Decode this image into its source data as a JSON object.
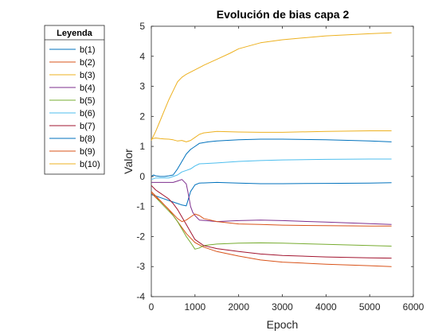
{
  "chart_data": {
    "type": "line",
    "title": "Evolución de bias capa 2",
    "xlabel": "Epoch",
    "ylabel": "Valor",
    "xlim": [
      0,
      6000
    ],
    "ylim": [
      -4,
      5
    ],
    "xticks": [
      0,
      1000,
      2000,
      3000,
      4000,
      5000,
      6000
    ],
    "yticks": [
      -4,
      -3,
      -2,
      -1,
      0,
      1,
      2,
      3,
      4,
      5
    ],
    "xtick_labels": [
      "0",
      "1000",
      "2000",
      "3000",
      "4000",
      "5000",
      "6000"
    ],
    "ytick_labels": [
      "-4",
      "-3",
      "-2",
      "-1",
      "0",
      "1",
      "2",
      "3",
      "4",
      "5"
    ],
    "grid": false,
    "legend": {
      "title": "Leyenda",
      "placement": "outside-left"
    },
    "series": [
      {
        "name": "b(1)",
        "color": "#0072BD",
        "points": [
          [
            0,
            -0.6
          ],
          [
            100,
            -0.65
          ],
          [
            200,
            -0.7
          ],
          [
            300,
            -0.75
          ],
          [
            400,
            -0.8
          ],
          [
            500,
            -0.85
          ],
          [
            600,
            -0.9
          ],
          [
            700,
            -0.95
          ],
          [
            800,
            -0.98
          ],
          [
            900,
            -0.5
          ],
          [
            1000,
            -0.28
          ],
          [
            1100,
            -0.22
          ],
          [
            1500,
            -0.2
          ],
          [
            2000,
            -0.22
          ],
          [
            2500,
            -0.24
          ],
          [
            3000,
            -0.24
          ],
          [
            4000,
            -0.23
          ],
          [
            5000,
            -0.22
          ],
          [
            5500,
            -0.21
          ]
        ]
      },
      {
        "name": "b(2)",
        "color": "#D95319",
        "points": [
          [
            0,
            -0.5
          ],
          [
            100,
            -0.65
          ],
          [
            200,
            -0.8
          ],
          [
            300,
            -0.95
          ],
          [
            400,
            -1.1
          ],
          [
            500,
            -1.3
          ],
          [
            600,
            -1.5
          ],
          [
            700,
            -1.7
          ],
          [
            800,
            -1.9
          ],
          [
            900,
            -2.05
          ],
          [
            1000,
            -2.2
          ],
          [
            1200,
            -2.35
          ],
          [
            1500,
            -2.5
          ],
          [
            2000,
            -2.65
          ],
          [
            2500,
            -2.78
          ],
          [
            3000,
            -2.85
          ],
          [
            4000,
            -2.92
          ],
          [
            5000,
            -2.97
          ],
          [
            5500,
            -3.0
          ]
        ]
      },
      {
        "name": "b(3)",
        "color": "#EDB120",
        "points": [
          [
            0,
            1.2
          ],
          [
            50,
            1.35
          ],
          [
            100,
            1.5
          ],
          [
            200,
            1.85
          ],
          [
            300,
            2.2
          ],
          [
            400,
            2.55
          ],
          [
            500,
            2.85
          ],
          [
            600,
            3.15
          ],
          [
            700,
            3.3
          ],
          [
            800,
            3.4
          ],
          [
            1000,
            3.55
          ],
          [
            1200,
            3.7
          ],
          [
            1500,
            3.9
          ],
          [
            1800,
            4.1
          ],
          [
            2000,
            4.25
          ],
          [
            2500,
            4.45
          ],
          [
            3000,
            4.55
          ],
          [
            4000,
            4.68
          ],
          [
            5000,
            4.75
          ],
          [
            5500,
            4.78
          ]
        ]
      },
      {
        "name": "b(4)",
        "color": "#7E2F8E",
        "points": [
          [
            0,
            -0.2
          ],
          [
            100,
            -0.2
          ],
          [
            200,
            -0.2
          ],
          [
            300,
            -0.2
          ],
          [
            400,
            -0.2
          ],
          [
            500,
            -0.2
          ],
          [
            600,
            -0.15
          ],
          [
            700,
            -0.1
          ],
          [
            800,
            -0.25
          ],
          [
            850,
            -0.6
          ],
          [
            900,
            -1.0
          ],
          [
            950,
            -1.2
          ],
          [
            1000,
            -1.3
          ],
          [
            1100,
            -1.45
          ],
          [
            1500,
            -1.5
          ],
          [
            2000,
            -1.47
          ],
          [
            2500,
            -1.45
          ],
          [
            3000,
            -1.47
          ],
          [
            4000,
            -1.52
          ],
          [
            5000,
            -1.57
          ],
          [
            5500,
            -1.6
          ]
        ]
      },
      {
        "name": "b(5)",
        "color": "#77AC30",
        "points": [
          [
            0,
            -0.55
          ],
          [
            100,
            -0.7
          ],
          [
            200,
            -0.85
          ],
          [
            300,
            -1.0
          ],
          [
            400,
            -1.15
          ],
          [
            500,
            -1.3
          ],
          [
            600,
            -1.5
          ],
          [
            700,
            -1.75
          ],
          [
            800,
            -2.0
          ],
          [
            900,
            -2.2
          ],
          [
            1000,
            -2.42
          ],
          [
            1100,
            -2.38
          ],
          [
            1200,
            -2.3
          ],
          [
            1500,
            -2.25
          ],
          [
            2000,
            -2.22
          ],
          [
            2500,
            -2.21
          ],
          [
            3000,
            -2.22
          ],
          [
            4000,
            -2.26
          ],
          [
            5000,
            -2.3
          ],
          [
            5500,
            -2.32
          ]
        ]
      },
      {
        "name": "b(6)",
        "color": "#4DBEEE",
        "points": [
          [
            0,
            -0.1
          ],
          [
            100,
            -0.05
          ],
          [
            200,
            -0.05
          ],
          [
            300,
            -0.05
          ],
          [
            400,
            -0.05
          ],
          [
            500,
            0.0
          ],
          [
            600,
            0.05
          ],
          [
            700,
            0.15
          ],
          [
            800,
            0.2
          ],
          [
            900,
            0.25
          ],
          [
            1000,
            0.35
          ],
          [
            1100,
            0.42
          ],
          [
            1500,
            0.45
          ],
          [
            2000,
            0.5
          ],
          [
            2500,
            0.53
          ],
          [
            3000,
            0.55
          ],
          [
            4000,
            0.57
          ],
          [
            5000,
            0.58
          ],
          [
            5500,
            0.58
          ]
        ]
      },
      {
        "name": "b(7)",
        "color": "#A2142F",
        "points": [
          [
            0,
            -0.3
          ],
          [
            100,
            -0.45
          ],
          [
            200,
            -0.55
          ],
          [
            300,
            -0.65
          ],
          [
            400,
            -0.75
          ],
          [
            500,
            -0.9
          ],
          [
            600,
            -1.1
          ],
          [
            700,
            -1.35
          ],
          [
            800,
            -1.6
          ],
          [
            900,
            -1.85
          ],
          [
            1000,
            -2.1
          ],
          [
            1200,
            -2.3
          ],
          [
            1500,
            -2.4
          ],
          [
            2000,
            -2.5
          ],
          [
            2500,
            -2.58
          ],
          [
            3000,
            -2.63
          ],
          [
            4000,
            -2.68
          ],
          [
            5000,
            -2.71
          ],
          [
            5500,
            -2.72
          ]
        ]
      },
      {
        "name": "b(8)",
        "color": "#0072BD",
        "points": [
          [
            0,
            0.0
          ],
          [
            50,
            0.05
          ],
          [
            100,
            0.02
          ],
          [
            200,
            0.0
          ],
          [
            300,
            0.0
          ],
          [
            400,
            0.02
          ],
          [
            500,
            0.05
          ],
          [
            600,
            0.25
          ],
          [
            700,
            0.5
          ],
          [
            800,
            0.75
          ],
          [
            900,
            0.9
          ],
          [
            1000,
            1.0
          ],
          [
            1100,
            1.1
          ],
          [
            1300,
            1.15
          ],
          [
            1500,
            1.18
          ],
          [
            2000,
            1.22
          ],
          [
            2500,
            1.24
          ],
          [
            3000,
            1.24
          ],
          [
            4000,
            1.22
          ],
          [
            5000,
            1.18
          ],
          [
            5500,
            1.15
          ]
        ]
      },
      {
        "name": "b(9)",
        "color": "#D95319",
        "points": [
          [
            0,
            -0.55
          ],
          [
            100,
            -0.7
          ],
          [
            200,
            -0.8
          ],
          [
            300,
            -0.95
          ],
          [
            400,
            -1.1
          ],
          [
            500,
            -1.25
          ],
          [
            600,
            -1.4
          ],
          [
            700,
            -1.5
          ],
          [
            800,
            -1.45
          ],
          [
            900,
            -1.35
          ],
          [
            1000,
            -1.25
          ],
          [
            1100,
            -1.3
          ],
          [
            1200,
            -1.4
          ],
          [
            1500,
            -1.5
          ],
          [
            2000,
            -1.58
          ],
          [
            2500,
            -1.6
          ],
          [
            3000,
            -1.62
          ],
          [
            4000,
            -1.64
          ],
          [
            5000,
            -1.65
          ],
          [
            5500,
            -1.65
          ]
        ]
      },
      {
        "name": "b(10)",
        "color": "#EDB120",
        "points": [
          [
            0,
            1.25
          ],
          [
            100,
            1.28
          ],
          [
            200,
            1.26
          ],
          [
            300,
            1.25
          ],
          [
            400,
            1.24
          ],
          [
            500,
            1.22
          ],
          [
            600,
            1.18
          ],
          [
            700,
            1.2
          ],
          [
            800,
            1.15
          ],
          [
            900,
            1.2
          ],
          [
            1000,
            1.3
          ],
          [
            1100,
            1.4
          ],
          [
            1200,
            1.45
          ],
          [
            1500,
            1.5
          ],
          [
            2000,
            1.48
          ],
          [
            2500,
            1.47
          ],
          [
            3000,
            1.47
          ],
          [
            4000,
            1.5
          ],
          [
            5000,
            1.52
          ],
          [
            5500,
            1.52
          ]
        ]
      }
    ]
  }
}
